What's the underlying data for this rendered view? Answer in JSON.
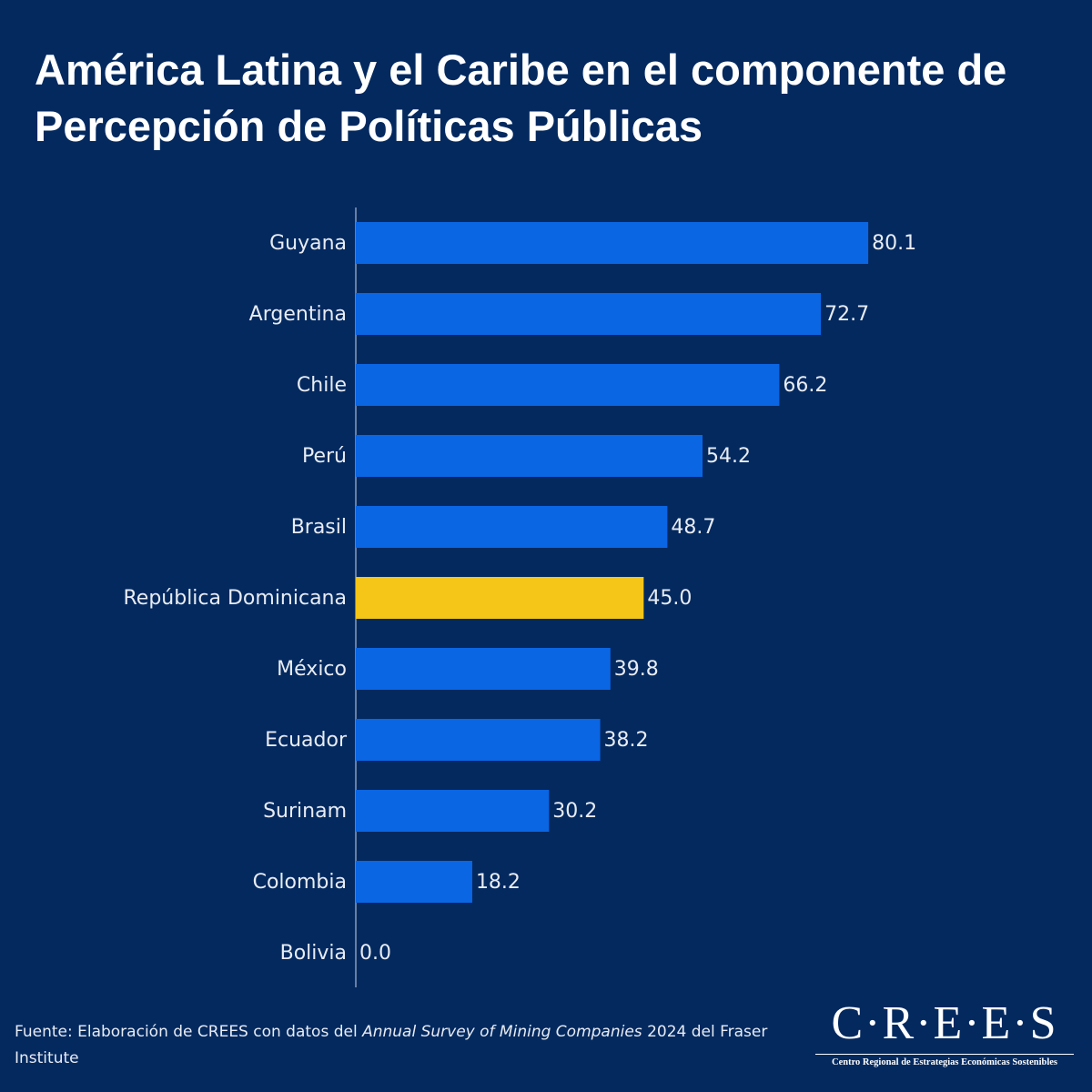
{
  "chart_data": {
    "type": "bar",
    "orientation": "horizontal",
    "title": "América Latina y el Caribe en el componente de Percepción de Políticas Públicas",
    "categories": [
      "Guyana",
      "Argentina",
      "Chile",
      "Perú",
      "Brasil",
      "República Dominicana",
      "México",
      "Ecuador",
      "Surinam",
      "Colombia",
      "Bolivia"
    ],
    "values": [
      80.1,
      72.7,
      66.2,
      54.2,
      48.7,
      45.0,
      39.8,
      38.2,
      30.2,
      18.2,
      0.0
    ],
    "value_labels": [
      "80.1",
      "72.7",
      "66.2",
      "54.2",
      "48.7",
      "45.0",
      "39.8",
      "38.2",
      "30.2",
      "18.2",
      "0.0"
    ],
    "colors": [
      "#0b66e4",
      "#0b66e4",
      "#0b66e4",
      "#0b66e4",
      "#0b66e4",
      "#f5c518",
      "#0b66e4",
      "#0b66e4",
      "#0b66e4",
      "#0b66e4",
      "#0b66e4"
    ],
    "xlim": [
      0,
      100
    ]
  },
  "source": {
    "prefix": "Fuente: Elaboración de CREES con datos del",
    "italic": "Annual Survey of Mining Companies",
    "suffix": "2024 del Fraser Institute"
  },
  "logo": {
    "name": "C·R·E·E·S",
    "subtitle": "Centro Regional de Estrategias Económicas Sostenibles"
  }
}
